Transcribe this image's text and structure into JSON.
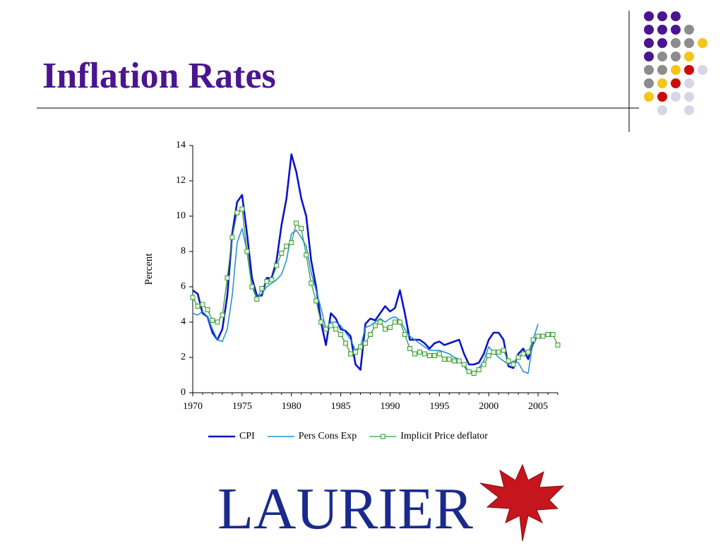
{
  "slide": {
    "title": "Inflation Rates",
    "logo": "LAURIER"
  },
  "chart_data": {
    "type": "line",
    "y_label": "Percent",
    "x": [
      1970,
      1970.5,
      1971,
      1971.5,
      1972,
      1972.5,
      1973,
      1973.5,
      1974,
      1974.5,
      1975,
      1975.5,
      1976,
      1976.5,
      1977,
      1977.5,
      1978,
      1978.5,
      1979,
      1979.5,
      1980,
      1980.5,
      1981,
      1981.5,
      1982,
      1982.5,
      1983,
      1983.5,
      1984,
      1984.5,
      1985,
      1985.5,
      1986,
      1986.5,
      1987,
      1987.5,
      1988,
      1988.5,
      1989,
      1989.5,
      1990,
      1990.5,
      1991,
      1991.5,
      1992,
      1992.5,
      1993,
      1993.5,
      1994,
      1994.5,
      1995,
      1995.5,
      1996,
      1996.5,
      1997,
      1997.5,
      1998,
      1998.5,
      1999,
      1999.5,
      2000,
      2000.5,
      2001,
      2001.5,
      2002,
      2002.5,
      2003,
      2003.5,
      2004,
      2004.5,
      2005,
      2005.5,
      2006,
      2006.5,
      2007
    ],
    "series": [
      {
        "name": "CPI",
        "color": "#0a14c8",
        "width": 2.6,
        "values": [
          5.8,
          5.6,
          4.5,
          4.3,
          3.4,
          3.0,
          3.6,
          5.5,
          9.0,
          10.8,
          11.2,
          9.0,
          6.5,
          5.5,
          5.5,
          6.5,
          6.5,
          7.5,
          9.5,
          11.0,
          13.5,
          12.5,
          11.0,
          10.0,
          7.5,
          6.0,
          4.0,
          2.7,
          4.5,
          4.2,
          3.6,
          3.5,
          3.2,
          1.6,
          1.3,
          3.9,
          4.2,
          4.1,
          4.5,
          4.9,
          4.6,
          4.8,
          5.8,
          4.5,
          3.0,
          3.0,
          3.0,
          2.8,
          2.5,
          2.8,
          2.9,
          2.7,
          2.8,
          2.9,
          3.0,
          2.2,
          1.6,
          1.6,
          1.7,
          2.2,
          3.0,
          3.4,
          3.4,
          3.0,
          1.5,
          1.4,
          2.2,
          2.5,
          1.9,
          2.8,
          3.3,
          null,
          null,
          null,
          null
        ]
      },
      {
        "name": "Pers Cons Exp",
        "color": "#1a8fd0",
        "width": 1.5,
        "values": [
          4.5,
          4.4,
          4.6,
          4.3,
          3.6,
          3.0,
          2.9,
          3.6,
          5.5,
          8.5,
          9.3,
          8.0,
          6.0,
          5.4,
          5.6,
          6.0,
          6.2,
          6.4,
          6.7,
          7.5,
          9.0,
          9.2,
          8.8,
          8.3,
          6.8,
          5.8,
          4.8,
          3.6,
          4.0,
          4.0,
          3.8,
          3.4,
          3.0,
          2.4,
          2.6,
          3.7,
          3.8,
          4.0,
          4.2,
          4.0,
          4.2,
          4.3,
          4.1,
          3.6,
          3.2,
          3.0,
          2.8,
          2.6,
          2.4,
          2.4,
          2.4,
          2.3,
          2.2,
          2.0,
          1.9,
          1.5,
          1.1,
          1.1,
          1.4,
          1.8,
          2.6,
          2.3,
          2.0,
          1.8,
          1.6,
          1.8,
          1.7,
          1.2,
          1.1,
          3.0,
          3.9,
          null,
          null,
          null,
          null
        ]
      },
      {
        "name": "Implicit Price deflator",
        "color": "#3a9a3a",
        "width": 1.3,
        "marker": "square",
        "values": [
          5.4,
          4.9,
          5.0,
          4.7,
          4.1,
          4.0,
          4.4,
          6.5,
          8.8,
          10.2,
          10.4,
          8.0,
          6.0,
          5.3,
          5.9,
          6.3,
          6.4,
          7.2,
          7.9,
          8.3,
          8.5,
          9.6,
          9.3,
          7.8,
          6.2,
          5.2,
          4.0,
          3.6,
          3.8,
          3.6,
          3.3,
          2.8,
          2.2,
          2.3,
          2.6,
          2.8,
          3.3,
          3.8,
          4.0,
          3.6,
          3.7,
          4.0,
          4.0,
          3.3,
          2.5,
          2.2,
          2.3,
          2.2,
          2.1,
          2.1,
          2.2,
          1.9,
          1.9,
          1.8,
          1.8,
          1.6,
          1.2,
          1.1,
          1.3,
          1.6,
          2.1,
          2.3,
          2.3,
          2.4,
          1.8,
          1.6,
          2.0,
          2.2,
          2.3,
          3.0,
          3.2,
          3.2,
          3.3,
          3.3,
          2.7
        ]
      }
    ],
    "xlim": [
      1970,
      2007
    ],
    "ylim": [
      0,
      14
    ],
    "xticks": [
      1970,
      1975,
      1980,
      1985,
      1990,
      1995,
      2000,
      2005
    ],
    "yticks": [
      0,
      2,
      4,
      6,
      8,
      10,
      12,
      14
    ],
    "legend": "bottom"
  }
}
